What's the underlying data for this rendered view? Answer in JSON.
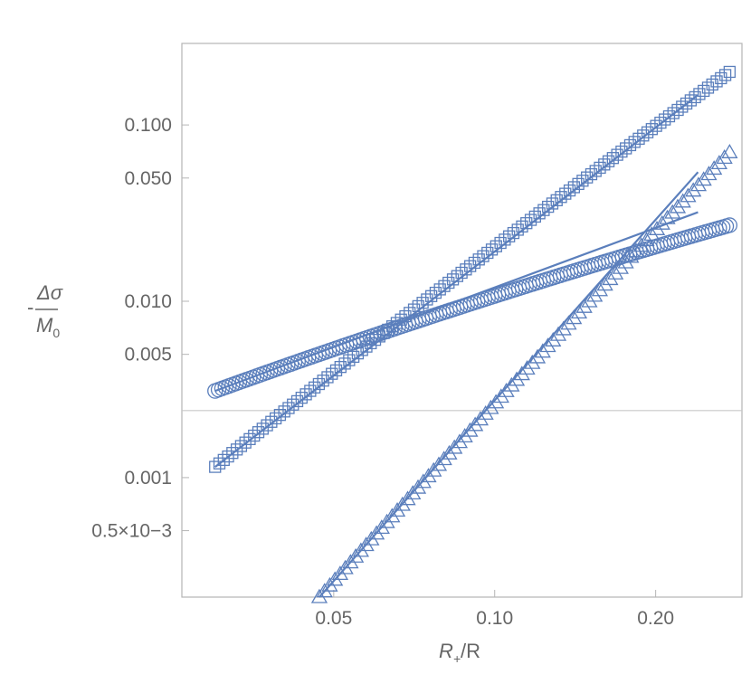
{
  "chart_data": {
    "type": "scatter",
    "scale": {
      "x": "log",
      "y": "log"
    },
    "xlim": [
      0.026,
      0.29
    ],
    "ylim": [
      0.00021,
      0.29
    ],
    "xticks": [
      {
        "value": 0.05,
        "label": "0.05"
      },
      {
        "value": 0.1,
        "label": "0.10"
      },
      {
        "value": 0.2,
        "label": "0.20"
      }
    ],
    "yticks": [
      {
        "value": 0.1,
        "label": "0.100"
      },
      {
        "value": 0.05,
        "label": "0.050"
      },
      {
        "value": 0.01,
        "label": "0.010"
      },
      {
        "value": 0.005,
        "label": "0.005"
      },
      {
        "value": 0.001,
        "label": "0.001"
      },
      {
        "value": 0.0005,
        "label": "0.5×10−3"
      }
    ],
    "xlabel": {
      "main": "R",
      "sub": "+",
      "rest": "/R"
    },
    "ylabel": {
      "prefix": "-",
      "numerator": "Δσ",
      "denominator_main": "M",
      "denominator_sub": "0"
    },
    "reference_line_y": 0.0024,
    "color": "#5b7fbc",
    "series": [
      {
        "marker": "square",
        "x_range": [
          0.03,
          0.275
        ],
        "n_points": 120,
        "y_start": 0.00115,
        "y_end": 0.2,
        "fit_range": [
          0.03,
          0.24
        ],
        "fit_y": [
          0.00115,
          0.148
        ]
      },
      {
        "marker": "triangle",
        "x_range": [
          0.047,
          0.275
        ],
        "n_points": 80,
        "y_start": 0.00021,
        "y_end": 0.07,
        "fit_range": [
          0.047,
          0.24
        ],
        "fit_y": [
          0.00021,
          0.054
        ]
      },
      {
        "marker": "circle",
        "x_range": [
          0.03,
          0.275
        ],
        "n_points": 150,
        "y_start": 0.0031,
        "y_end": 0.027,
        "fit_range": [
          0.03,
          0.24
        ],
        "fit_y": [
          0.0031,
          0.032
        ]
      }
    ]
  }
}
